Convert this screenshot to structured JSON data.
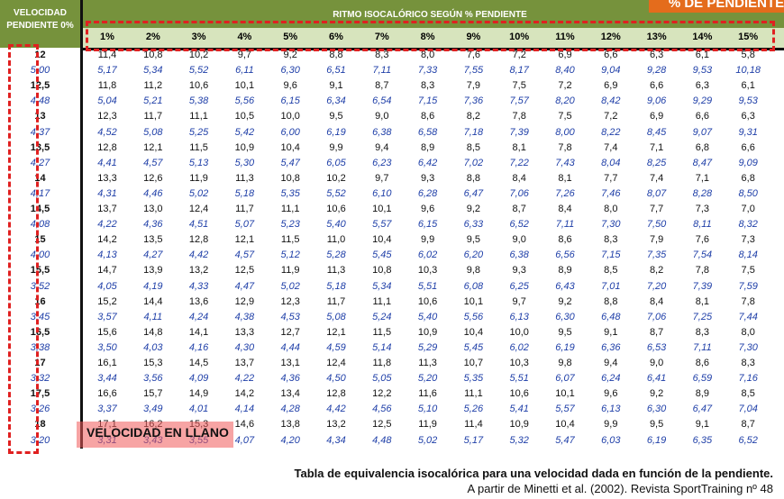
{
  "header": {
    "velocity_title": [
      "VELOCIDAD",
      "PENDIENTE 0%"
    ],
    "rhythm_title": "RITMO ISOCALÓRICO SEGÚN % PENDIENTE",
    "pct_tag": "% DE PENDIENTE"
  },
  "grades": [
    "1%",
    "2%",
    "3%",
    "4%",
    "5%",
    "6%",
    "7%",
    "8%",
    "9%",
    "10%",
    "11%",
    "12%",
    "13%",
    "14%",
    "15%"
  ],
  "rows": [
    {
      "speed": "12",
      "values": [
        "11,4",
        "10,8",
        "10,2",
        "9,7",
        "9,2",
        "8,8",
        "8,3",
        "8,0",
        "7,6",
        "7,2",
        "6,9",
        "6,6",
        "6,3",
        "6,1",
        "5,8"
      ]
    },
    {
      "speed": "5,00",
      "values": [
        "5,17",
        "5,34",
        "5,52",
        "6,11",
        "6,30",
        "6,51",
        "7,11",
        "7,33",
        "7,55",
        "8,17",
        "8,40",
        "9,04",
        "9,28",
        "9,53",
        "10,18"
      ]
    },
    {
      "speed": "12,5",
      "values": [
        "11,8",
        "11,2",
        "10,6",
        "10,1",
        "9,6",
        "9,1",
        "8,7",
        "8,3",
        "7,9",
        "7,5",
        "7,2",
        "6,9",
        "6,6",
        "6,3",
        "6,1"
      ]
    },
    {
      "speed": "4,48",
      "values": [
        "5,04",
        "5,21",
        "5,38",
        "5,56",
        "6,15",
        "6,34",
        "6,54",
        "7,15",
        "7,36",
        "7,57",
        "8,20",
        "8,42",
        "9,06",
        "9,29",
        "9,53"
      ]
    },
    {
      "speed": "13",
      "values": [
        "12,3",
        "11,7",
        "11,1",
        "10,5",
        "10,0",
        "9,5",
        "9,0",
        "8,6",
        "8,2",
        "7,8",
        "7,5",
        "7,2",
        "6,9",
        "6,6",
        "6,3"
      ]
    },
    {
      "speed": "4,37",
      "values": [
        "4,52",
        "5,08",
        "5,25",
        "5,42",
        "6,00",
        "6,19",
        "6,38",
        "6,58",
        "7,18",
        "7,39",
        "8,00",
        "8,22",
        "8,45",
        "9,07",
        "9,31"
      ]
    },
    {
      "speed": "13,5",
      "values": [
        "12,8",
        "12,1",
        "11,5",
        "10,9",
        "10,4",
        "9,9",
        "9,4",
        "8,9",
        "8,5",
        "8,1",
        "7,8",
        "7,4",
        "7,1",
        "6,8",
        "6,6"
      ]
    },
    {
      "speed": "4,27",
      "values": [
        "4,41",
        "4,57",
        "5,13",
        "5,30",
        "5,47",
        "6,05",
        "6,23",
        "6,42",
        "7,02",
        "7,22",
        "7,43",
        "8,04",
        "8,25",
        "8,47",
        "9,09"
      ]
    },
    {
      "speed": "14",
      "values": [
        "13,3",
        "12,6",
        "11,9",
        "11,3",
        "10,8",
        "10,2",
        "9,7",
        "9,3",
        "8,8",
        "8,4",
        "8,1",
        "7,7",
        "7,4",
        "7,1",
        "6,8"
      ]
    },
    {
      "speed": "4,17",
      "values": [
        "4,31",
        "4,46",
        "5,02",
        "5,18",
        "5,35",
        "5,52",
        "6,10",
        "6,28",
        "6,47",
        "7,06",
        "7,26",
        "7,46",
        "8,07",
        "8,28",
        "8,50"
      ]
    },
    {
      "speed": "14,5",
      "values": [
        "13,7",
        "13,0",
        "12,4",
        "11,7",
        "11,1",
        "10,6",
        "10,1",
        "9,6",
        "9,2",
        "8,7",
        "8,4",
        "8,0",
        "7,7",
        "7,3",
        "7,0"
      ]
    },
    {
      "speed": "4,08",
      "values": [
        "4,22",
        "4,36",
        "4,51",
        "5,07",
        "5,23",
        "5,40",
        "5,57",
        "6,15",
        "6,33",
        "6,52",
        "7,11",
        "7,30",
        "7,50",
        "8,11",
        "8,32"
      ]
    },
    {
      "speed": "15",
      "values": [
        "14,2",
        "13,5",
        "12,8",
        "12,1",
        "11,5",
        "11,0",
        "10,4",
        "9,9",
        "9,5",
        "9,0",
        "8,6",
        "8,3",
        "7,9",
        "7,6",
        "7,3"
      ]
    },
    {
      "speed": "4,00",
      "values": [
        "4,13",
        "4,27",
        "4,42",
        "4,57",
        "5,12",
        "5,28",
        "5,45",
        "6,02",
        "6,20",
        "6,38",
        "6,56",
        "7,15",
        "7,35",
        "7,54",
        "8,14"
      ]
    },
    {
      "speed": "15,5",
      "values": [
        "14,7",
        "13,9",
        "13,2",
        "12,5",
        "11,9",
        "11,3",
        "10,8",
        "10,3",
        "9,8",
        "9,3",
        "8,9",
        "8,5",
        "8,2",
        "7,8",
        "7,5"
      ]
    },
    {
      "speed": "3,52",
      "values": [
        "4,05",
        "4,19",
        "4,33",
        "4,47",
        "5,02",
        "5,18",
        "5,34",
        "5,51",
        "6,08",
        "6,25",
        "6,43",
        "7,01",
        "7,20",
        "7,39",
        "7,59"
      ]
    },
    {
      "speed": "16",
      "values": [
        "15,2",
        "14,4",
        "13,6",
        "12,9",
        "12,3",
        "11,7",
        "11,1",
        "10,6",
        "10,1",
        "9,7",
        "9,2",
        "8,8",
        "8,4",
        "8,1",
        "7,8"
      ]
    },
    {
      "speed": "3,45",
      "values": [
        "3,57",
        "4,11",
        "4,24",
        "4,38",
        "4,53",
        "5,08",
        "5,24",
        "5,40",
        "5,56",
        "6,13",
        "6,30",
        "6,48",
        "7,06",
        "7,25",
        "7,44"
      ]
    },
    {
      "speed": "16,5",
      "values": [
        "15,6",
        "14,8",
        "14,1",
        "13,3",
        "12,7",
        "12,1",
        "11,5",
        "10,9",
        "10,4",
        "10,0",
        "9,5",
        "9,1",
        "8,7",
        "8,3",
        "8,0"
      ]
    },
    {
      "speed": "3,38",
      "values": [
        "3,50",
        "4,03",
        "4,16",
        "4,30",
        "4,44",
        "4,59",
        "5,14",
        "5,29",
        "5,45",
        "6,02",
        "6,19",
        "6,36",
        "6,53",
        "7,11",
        "7,30"
      ]
    },
    {
      "speed": "17",
      "values": [
        "16,1",
        "15,3",
        "14,5",
        "13,7",
        "13,1",
        "12,4",
        "11,8",
        "11,3",
        "10,7",
        "10,3",
        "9,8",
        "9,4",
        "9,0",
        "8,6",
        "8,3"
      ]
    },
    {
      "speed": "3,32",
      "values": [
        "3,44",
        "3,56",
        "4,09",
        "4,22",
        "4,36",
        "4,50",
        "5,05",
        "5,20",
        "5,35",
        "5,51",
        "6,07",
        "6,24",
        "6,41",
        "6,59",
        "7,16"
      ]
    },
    {
      "speed": "17,5",
      "values": [
        "16,6",
        "15,7",
        "14,9",
        "14,2",
        "13,4",
        "12,8",
        "12,2",
        "11,6",
        "11,1",
        "10,6",
        "10,1",
        "9,6",
        "9,2",
        "8,9",
        "8,5"
      ]
    },
    {
      "speed": "3,26",
      "values": [
        "3,37",
        "3,49",
        "4,01",
        "4,14",
        "4,28",
        "4,42",
        "4,56",
        "5,10",
        "5,26",
        "5,41",
        "5,57",
        "6,13",
        "6,30",
        "6,47",
        "7,04"
      ]
    },
    {
      "speed": "18",
      "values": [
        "17,1",
        "16,2",
        "15,3",
        "14,6",
        "13,8",
        "13,2",
        "12,5",
        "11,9",
        "11,4",
        "10,9",
        "10,4",
        "9,9",
        "9,5",
        "9,1",
        "8,7"
      ]
    },
    {
      "speed": "3,20",
      "values": [
        "3,31",
        "3,43",
        "3,55",
        "4,07",
        "4,20",
        "4,34",
        "4,48",
        "5,02",
        "5,17",
        "5,32",
        "5,47",
        "6,03",
        "6,19",
        "6,35",
        "6,52"
      ]
    }
  ],
  "overlay_label": "VELOCIDAD EN LLANO",
  "caption": {
    "line1": "Tabla de equivalencia isocalórica para una velocidad dada en función de la pendiente.",
    "line2": "A partir de Minetti et al. (2002). Revista SportTraining nº 48"
  },
  "colors": {
    "header_green": "#76923c",
    "grade_row_bg": "#d7e4bd",
    "pace_blue": "#1f3fa8",
    "highlight_red": "#e02020",
    "tag_orange": "#e46c1c"
  }
}
